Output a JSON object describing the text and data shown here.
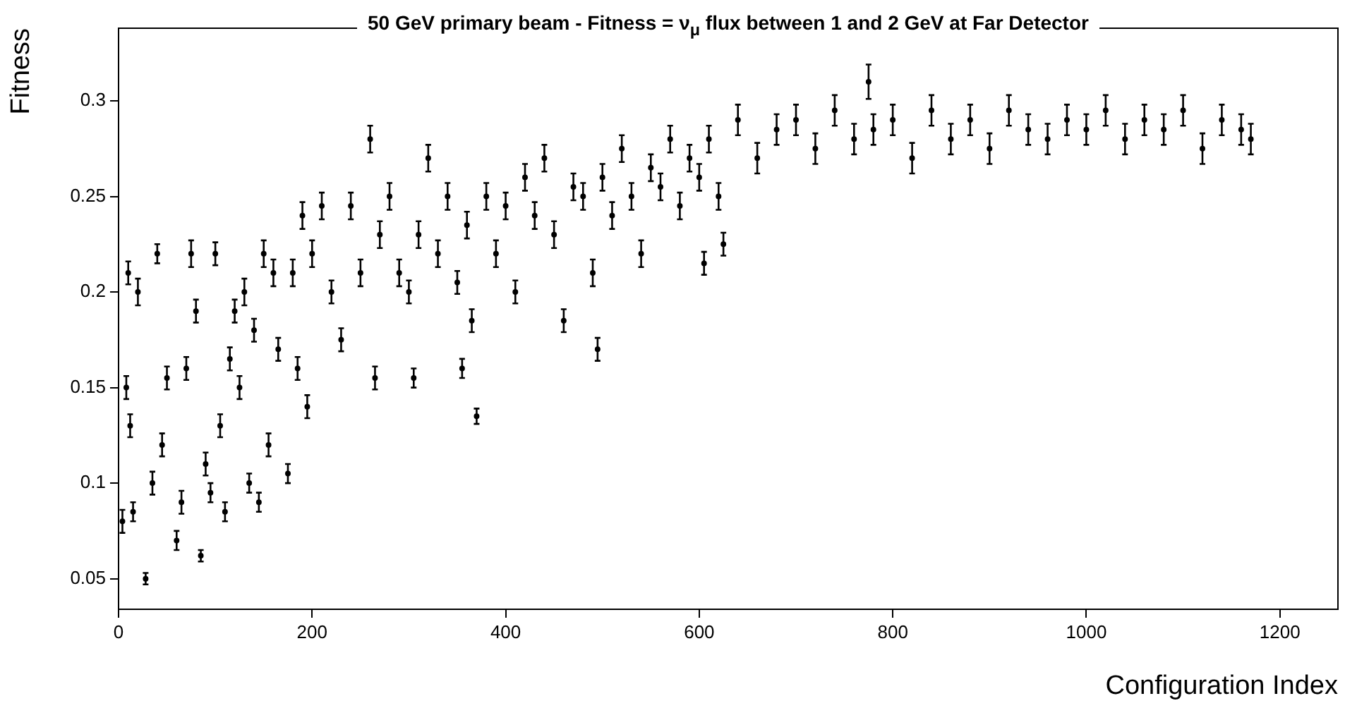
{
  "chart_data": {
    "type": "scatter",
    "title": "50 GeV primary beam - Fitness = ν$_{μ}$ flux between 1 and 2 GeV at Far Detector",
    "xlabel": "Configuration Index",
    "ylabel": "Fitness",
    "xlim": [
      0,
      1260
    ],
    "xticks": [
      0,
      200,
      400,
      600,
      800,
      1000,
      1200
    ],
    "ylim": [
      0.034,
      0.338
    ],
    "yticks": [
      0.05,
      0.1,
      0.15,
      0.2,
      0.25,
      0.3
    ],
    "grid": false,
    "legend": false,
    "series": [
      {
        "color": "#000000",
        "x": [
          4,
          8,
          10,
          12,
          15,
          20,
          28,
          35,
          40,
          45,
          50,
          60,
          65,
          70,
          75,
          80,
          85,
          90,
          95,
          100,
          105,
          110,
          115,
          120,
          125,
          130,
          135,
          140,
          145,
          150,
          155,
          160,
          165,
          175,
          180,
          185,
          190,
          195,
          200,
          210,
          220,
          230,
          240,
          250,
          260,
          265,
          270,
          280,
          290,
          300,
          305,
          310,
          320,
          330,
          340,
          350,
          355,
          360,
          365,
          370,
          380,
          390,
          400,
          410,
          420,
          430,
          440,
          450,
          460,
          470,
          480,
          490,
          495,
          500,
          510,
          520,
          530,
          540,
          550,
          560,
          570,
          580,
          590,
          600,
          605,
          610,
          620,
          625,
          640,
          660,
          680,
          700,
          720,
          740,
          760,
          775,
          780,
          800,
          820,
          840,
          860,
          880,
          900,
          920,
          940,
          960,
          980,
          1000,
          1020,
          1040,
          1060,
          1080,
          1100,
          1120,
          1140,
          1160,
          1170
        ],
        "values": [
          0.08,
          0.15,
          0.21,
          0.13,
          0.085,
          0.2,
          0.05,
          0.1,
          0.22,
          0.12,
          0.155,
          0.07,
          0.09,
          0.16,
          0.22,
          0.19,
          0.062,
          0.11,
          0.095,
          0.22,
          0.13,
          0.085,
          0.165,
          0.19,
          0.15,
          0.2,
          0.1,
          0.18,
          0.09,
          0.22,
          0.12,
          0.21,
          0.17,
          0.105,
          0.21,
          0.16,
          0.24,
          0.14,
          0.22,
          0.245,
          0.2,
          0.175,
          0.245,
          0.21,
          0.28,
          0.155,
          0.23,
          0.25,
          0.21,
          0.2,
          0.155,
          0.23,
          0.27,
          0.22,
          0.25,
          0.205,
          0.16,
          0.235,
          0.185,
          0.135,
          0.25,
          0.22,
          0.245,
          0.2,
          0.26,
          0.24,
          0.27,
          0.23,
          0.185,
          0.255,
          0.25,
          0.21,
          0.17,
          0.26,
          0.24,
          0.275,
          0.25,
          0.22,
          0.265,
          0.255,
          0.28,
          0.245,
          0.27,
          0.26,
          0.215,
          0.28,
          0.25,
          0.225,
          0.29,
          0.27,
          0.285,
          0.29,
          0.275,
          0.295,
          0.28,
          0.31,
          0.285,
          0.29,
          0.27,
          0.295,
          0.28,
          0.29,
          0.275,
          0.295,
          0.285,
          0.28,
          0.29,
          0.285,
          0.295,
          0.28,
          0.29,
          0.285,
          0.295,
          0.275,
          0.29,
          0.285,
          0.28
        ],
        "errors": [
          0.006,
          0.006,
          0.006,
          0.006,
          0.005,
          0.007,
          0.003,
          0.006,
          0.005,
          0.006,
          0.006,
          0.005,
          0.006,
          0.006,
          0.007,
          0.006,
          0.003,
          0.006,
          0.005,
          0.006,
          0.006,
          0.005,
          0.006,
          0.006,
          0.006,
          0.007,
          0.005,
          0.006,
          0.005,
          0.007,
          0.006,
          0.007,
          0.006,
          0.005,
          0.007,
          0.006,
          0.007,
          0.006,
          0.007,
          0.007,
          0.006,
          0.006,
          0.007,
          0.007,
          0.007,
          0.006,
          0.007,
          0.007,
          0.007,
          0.006,
          0.005,
          0.007,
          0.007,
          0.007,
          0.007,
          0.006,
          0.005,
          0.007,
          0.006,
          0.004,
          0.007,
          0.007,
          0.007,
          0.006,
          0.007,
          0.007,
          0.007,
          0.007,
          0.006,
          0.007,
          0.007,
          0.007,
          0.006,
          0.007,
          0.007,
          0.007,
          0.007,
          0.007,
          0.007,
          0.007,
          0.007,
          0.007,
          0.007,
          0.007,
          0.006,
          0.007,
          0.007,
          0.006,
          0.008,
          0.008,
          0.008,
          0.008,
          0.008,
          0.008,
          0.008,
          0.009,
          0.008,
          0.008,
          0.008,
          0.008,
          0.008,
          0.008,
          0.008,
          0.008,
          0.008,
          0.008,
          0.008,
          0.008,
          0.008,
          0.008,
          0.008,
          0.008,
          0.008,
          0.008,
          0.008,
          0.008,
          0.008
        ]
      }
    ]
  }
}
